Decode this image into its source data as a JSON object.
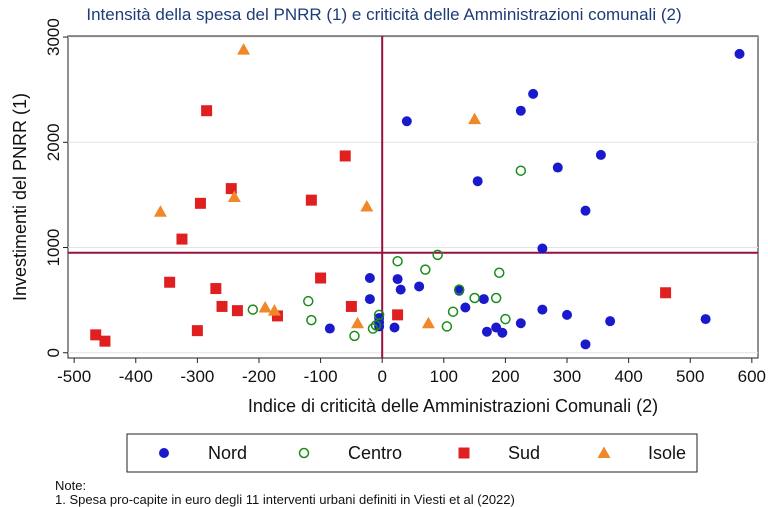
{
  "chart_data": {
    "type": "scatter",
    "title": "Intensità della spesa del PNRR (1) e criticità delle Amministrazioni comunali (2)",
    "xlabel": "Indice di criticità delle Amministrazioni Comunali (2)",
    "ylabel": "Investimenti del PNRR (1)",
    "xlim": [
      -510,
      610
    ],
    "ylim": [
      -50,
      3010
    ],
    "xticks": [
      "-500",
      "-400",
      "-300",
      "-200",
      "-100",
      "0",
      "100",
      "200",
      "300",
      "400",
      "500",
      "600"
    ],
    "yticks": [
      "0",
      "1000",
      "2000",
      "3000"
    ],
    "reference_lines": {
      "x": 0,
      "y": 950
    },
    "grid": true,
    "legend": "bottom",
    "series": [
      {
        "name": "Nord",
        "marker": "filled-circle",
        "color": "#1a1acc",
        "points": [
          [
            580,
            2840
          ],
          [
            245,
            2460
          ],
          [
            225,
            2300
          ],
          [
            40,
            2200
          ],
          [
            355,
            1880
          ],
          [
            285,
            1760
          ],
          [
            155,
            1630
          ],
          [
            330,
            1350
          ],
          [
            260,
            990
          ],
          [
            -20,
            710
          ],
          [
            25,
            700
          ],
          [
            125,
            590
          ],
          [
            60,
            630
          ],
          [
            30,
            600
          ],
          [
            165,
            510
          ],
          [
            -20,
            510
          ],
          [
            260,
            410
          ],
          [
            300,
            360
          ],
          [
            -5,
            330
          ],
          [
            -5,
            290
          ],
          [
            370,
            300
          ],
          [
            525,
            320
          ],
          [
            225,
            280
          ],
          [
            -5,
            250
          ],
          [
            -85,
            230
          ],
          [
            20,
            240
          ],
          [
            185,
            240
          ],
          [
            135,
            430
          ],
          [
            170,
            200
          ],
          [
            195,
            190
          ],
          [
            330,
            80
          ]
        ]
      },
      {
        "name": "Centro",
        "marker": "hollow-circle",
        "color": "#1a8c1a",
        "points": [
          [
            225,
            1730
          ],
          [
            90,
            930
          ],
          [
            25,
            870
          ],
          [
            70,
            790
          ],
          [
            190,
            760
          ],
          [
            125,
            600
          ],
          [
            150,
            520
          ],
          [
            185,
            520
          ],
          [
            -120,
            490
          ],
          [
            -210,
            410
          ],
          [
            115,
            390
          ],
          [
            -5,
            360
          ],
          [
            -115,
            310
          ],
          [
            200,
            320
          ],
          [
            -10,
            260
          ],
          [
            -15,
            230
          ],
          [
            105,
            250
          ],
          [
            -45,
            160
          ]
        ]
      },
      {
        "name": "Sud",
        "marker": "filled-square",
        "color": "#e02020",
        "points": [
          [
            -285,
            2300
          ],
          [
            -60,
            1870
          ],
          [
            -245,
            1560
          ],
          [
            -295,
            1420
          ],
          [
            -115,
            1450
          ],
          [
            -325,
            1080
          ],
          [
            -100,
            710
          ],
          [
            -345,
            670
          ],
          [
            -270,
            610
          ],
          [
            -260,
            440
          ],
          [
            -235,
            400
          ],
          [
            -50,
            440
          ],
          [
            25,
            360
          ],
          [
            -170,
            350
          ],
          [
            460,
            570
          ],
          [
            -300,
            210
          ],
          [
            -465,
            170
          ],
          [
            -450,
            110
          ]
        ]
      },
      {
        "name": "Isole",
        "marker": "filled-triangle",
        "color": "#f0882a",
        "points": [
          [
            -225,
            2880
          ],
          [
            150,
            2220
          ],
          [
            -360,
            1340
          ],
          [
            -240,
            1480
          ],
          [
            -25,
            1390
          ],
          [
            -190,
            430
          ],
          [
            -175,
            400
          ],
          [
            -40,
            280
          ],
          [
            75,
            280
          ]
        ]
      }
    ]
  },
  "note": {
    "label": "Note:",
    "line1": "1. Spesa pro-capite in euro degli 11 interventi urbani definiti in Viesti et al (2022)"
  }
}
